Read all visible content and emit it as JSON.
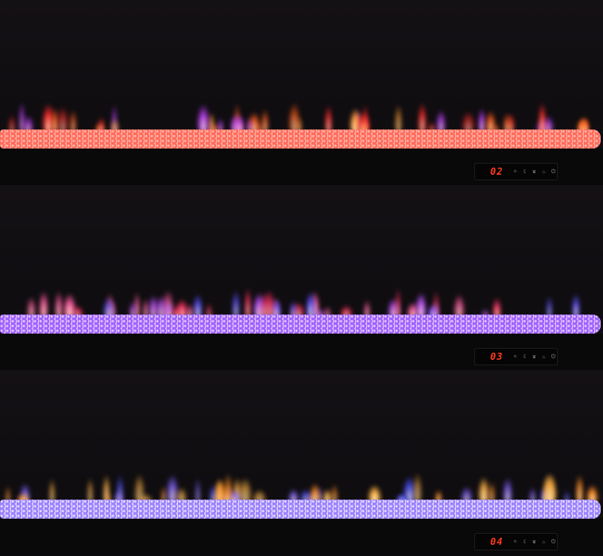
{
  "panels": [
    {
      "display": "02",
      "flame_colors": [
        "#ff5a1a",
        "#ff2a2a",
        "#ff9a30",
        "#c03cff"
      ],
      "bed_color": "#ff6a5a",
      "bed_highlight": "#ffb3a8"
    },
    {
      "display": "03",
      "flame_colors": [
        "#ff3060",
        "#5a50ff",
        "#ff5aa0",
        "#c050ff"
      ],
      "bed_color": "#a060ff",
      "bed_highlight": "#e0c8ff"
    },
    {
      "display": "04",
      "flame_colors": [
        "#ff8a20",
        "#4a50ff",
        "#ffb040",
        "#8060ff"
      ],
      "bed_color": "#9a80ff",
      "bed_highlight": "#e4dcff"
    }
  ],
  "control_icons": [
    "light-icon",
    "timer-icon",
    "flame-icon",
    "heat-icon",
    "power-icon"
  ],
  "led_color": "#ff3a1e"
}
